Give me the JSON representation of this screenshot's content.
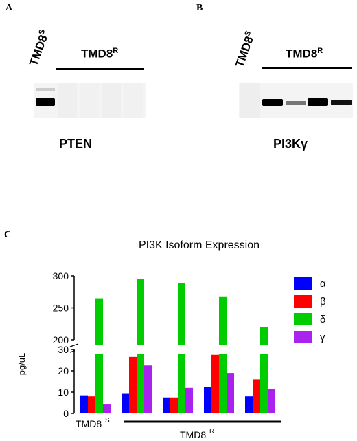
{
  "panels": {
    "a": {
      "letter": "A",
      "title": "PTEN",
      "sensitive_label": "TMD8",
      "sensitive_sup": "S",
      "resistant_label": "TMD8",
      "resistant_sup": "R"
    },
    "b": {
      "letter": "B",
      "title": "PI3Kγ",
      "sensitive_label": "TMD8",
      "sensitive_sup": "S",
      "resistant_label": "TMD8",
      "resistant_sup": "R"
    },
    "c": {
      "letter": "C"
    }
  },
  "chart_data": {
    "type": "bar",
    "title": "PI3K Isoform Expression",
    "ylabel": "pg/uL",
    "y_axis_break": true,
    "ylim_lower": [
      0,
      30
    ],
    "ylim_upper": [
      200,
      300
    ],
    "yticks_lower": [
      "0",
      "10",
      "20",
      "30"
    ],
    "yticks_upper": [
      "200",
      "250",
      "300"
    ],
    "group_labels": {
      "sensitive": "TMD8",
      "sensitive_sup": "S",
      "resistant": "TMD8",
      "resistant_sup": "R"
    },
    "groups": 5,
    "legend_position": "right",
    "series": [
      {
        "name": "α",
        "color": "#0000ff",
        "values": [
          8.5,
          9.5,
          7.5,
          12.5,
          8
        ]
      },
      {
        "name": "β",
        "color": "#ff0000",
        "values": [
          8,
          26.5,
          7.5,
          27.5,
          16
        ]
      },
      {
        "name": "δ",
        "color": "#00cc00",
        "values": [
          265,
          295,
          289,
          268,
          220
        ]
      },
      {
        "name": "γ",
        "color": "#aa22ee",
        "values": [
          4.5,
          22.5,
          12,
          19,
          11.5
        ]
      }
    ]
  }
}
